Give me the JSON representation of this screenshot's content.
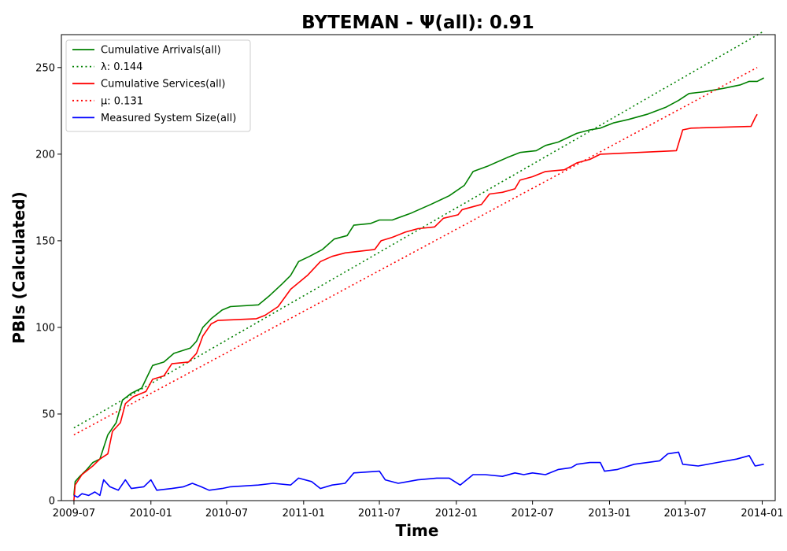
{
  "chart_data": {
    "type": "line",
    "title": "BYTEMAN -  Ψ(all): 0.91",
    "xlabel": "Time",
    "ylabel": "PBIs (Calculated)",
    "xlim": [
      "2009-06-01",
      "2014-02-01"
    ],
    "ylim": [
      0,
      269
    ],
    "x_ticks": [
      "2009-07",
      "2010-01",
      "2010-07",
      "2011-01",
      "2011-07",
      "2012-01",
      "2012-07",
      "2013-01",
      "2013-07",
      "2014-01"
    ],
    "y_ticks": [
      0,
      50,
      100,
      150,
      200,
      250
    ],
    "grid": false,
    "legend_position": "top-left",
    "series": [
      {
        "name": "Cumulative Arrivals(all)",
        "color": "#008000",
        "style": "solid",
        "points": [
          [
            "2009-07-01",
            3
          ],
          [
            "2009-07-04",
            11
          ],
          [
            "2009-07-15",
            14
          ],
          [
            "2009-08-01",
            18
          ],
          [
            "2009-08-15",
            22
          ],
          [
            "2009-09-01",
            24
          ],
          [
            "2009-09-20",
            38
          ],
          [
            "2009-10-10",
            45
          ],
          [
            "2009-10-25",
            58
          ],
          [
            "2009-11-15",
            62
          ],
          [
            "2009-12-10",
            65
          ],
          [
            "2009-12-20",
            70
          ],
          [
            "2010-01-05",
            78
          ],
          [
            "2010-02-01",
            80
          ],
          [
            "2010-02-25",
            85
          ],
          [
            "2010-04-05",
            88
          ],
          [
            "2010-04-20",
            92
          ],
          [
            "2010-05-05",
            100
          ],
          [
            "2010-05-25",
            105
          ],
          [
            "2010-06-20",
            110
          ],
          [
            "2010-07-10",
            112
          ],
          [
            "2010-09-15",
            113
          ],
          [
            "2010-10-10",
            118
          ],
          [
            "2010-11-10",
            125
          ],
          [
            "2010-12-01",
            130
          ],
          [
            "2010-12-20",
            138
          ],
          [
            "2011-01-15",
            141
          ],
          [
            "2011-02-15",
            145
          ],
          [
            "2011-03-15",
            151
          ],
          [
            "2011-04-15",
            153
          ],
          [
            "2011-05-01",
            159
          ],
          [
            "2011-06-10",
            160
          ],
          [
            "2011-07-01",
            162
          ],
          [
            "2011-08-01",
            162
          ],
          [
            "2011-09-15",
            166
          ],
          [
            "2011-11-01",
            171
          ],
          [
            "2011-12-15",
            176
          ],
          [
            "2012-01-20",
            182
          ],
          [
            "2012-02-10",
            190
          ],
          [
            "2012-03-15",
            193
          ],
          [
            "2012-05-01",
            198
          ],
          [
            "2012-06-01",
            201
          ],
          [
            "2012-07-10",
            202
          ],
          [
            "2012-08-01",
            205
          ],
          [
            "2012-09-01",
            207
          ],
          [
            "2012-10-15",
            212
          ],
          [
            "2012-11-15",
            214
          ],
          [
            "2012-12-10",
            215
          ],
          [
            "2013-01-10",
            218
          ],
          [
            "2013-02-15",
            220
          ],
          [
            "2013-04-01",
            223
          ],
          [
            "2013-05-15",
            227
          ],
          [
            "2013-06-15",
            231
          ],
          [
            "2013-07-10",
            235
          ],
          [
            "2013-08-15",
            236
          ],
          [
            "2013-10-01",
            238
          ],
          [
            "2013-11-10",
            240
          ],
          [
            "2013-12-01",
            242
          ],
          [
            "2013-12-20",
            242
          ],
          [
            "2014-01-05",
            244
          ]
        ]
      },
      {
        "name": "λ: 0.144",
        "color": "#008000",
        "style": "dotted",
        "points": [
          [
            "2009-07-01",
            42
          ],
          [
            "2014-01-05",
            271
          ]
        ]
      },
      {
        "name": "Cumulative Services(all)",
        "color": "#ff0000",
        "style": "solid",
        "points": [
          [
            "2009-07-01",
            0
          ],
          [
            "2009-07-04",
            9
          ],
          [
            "2009-07-20",
            15
          ],
          [
            "2009-08-15",
            20
          ],
          [
            "2009-09-01",
            24
          ],
          [
            "2009-09-20",
            27
          ],
          [
            "2009-10-01",
            40
          ],
          [
            "2009-10-20",
            45
          ],
          [
            "2009-11-01",
            56
          ],
          [
            "2009-11-20",
            60
          ],
          [
            "2009-12-20",
            63
          ],
          [
            "2010-01-05",
            70
          ],
          [
            "2010-02-01",
            72
          ],
          [
            "2010-02-20",
            79
          ],
          [
            "2010-04-01",
            80
          ],
          [
            "2010-04-20",
            85
          ],
          [
            "2010-05-05",
            95
          ],
          [
            "2010-05-25",
            102
          ],
          [
            "2010-06-10",
            104
          ],
          [
            "2010-09-10",
            105
          ],
          [
            "2010-10-01",
            107
          ],
          [
            "2010-11-01",
            112
          ],
          [
            "2010-12-01",
            122
          ],
          [
            "2011-01-10",
            130
          ],
          [
            "2011-02-10",
            138
          ],
          [
            "2011-03-10",
            141
          ],
          [
            "2011-04-10",
            143
          ],
          [
            "2011-06-20",
            145
          ],
          [
            "2011-07-05",
            150
          ],
          [
            "2011-08-01",
            152
          ],
          [
            "2011-09-01",
            155
          ],
          [
            "2011-10-01",
            157
          ],
          [
            "2011-11-10",
            158
          ],
          [
            "2011-12-01",
            163
          ],
          [
            "2012-01-05",
            165
          ],
          [
            "2012-01-15",
            168
          ],
          [
            "2012-03-01",
            171
          ],
          [
            "2012-03-20",
            177
          ],
          [
            "2012-04-20",
            178
          ],
          [
            "2012-05-20",
            180
          ],
          [
            "2012-06-01",
            185
          ],
          [
            "2012-07-01",
            187
          ],
          [
            "2012-08-01",
            190
          ],
          [
            "2012-09-15",
            191
          ],
          [
            "2012-10-15",
            195
          ],
          [
            "2012-11-15",
            197
          ],
          [
            "2012-12-10",
            200
          ],
          [
            "2013-06-10",
            202
          ],
          [
            "2013-06-25",
            214
          ],
          [
            "2013-07-15",
            215
          ],
          [
            "2013-12-05",
            216
          ],
          [
            "2013-12-15",
            221
          ],
          [
            "2013-12-20",
            223
          ]
        ]
      },
      {
        "name": "μ: 0.131",
        "color": "#ff0000",
        "style": "dotted",
        "points": [
          [
            "2009-07-01",
            38
          ],
          [
            "2013-12-20",
            250
          ]
        ]
      },
      {
        "name": "Measured System Size(all)",
        "color": "#0000ff",
        "style": "solid",
        "points": [
          [
            "2009-07-01",
            3
          ],
          [
            "2009-07-10",
            2
          ],
          [
            "2009-07-20",
            4
          ],
          [
            "2009-08-05",
            3
          ],
          [
            "2009-08-20",
            5
          ],
          [
            "2009-09-01",
            3
          ],
          [
            "2009-09-10",
            12
          ],
          [
            "2009-09-25",
            8
          ],
          [
            "2009-10-15",
            6
          ],
          [
            "2009-11-01",
            12
          ],
          [
            "2009-11-15",
            7
          ],
          [
            "2009-12-15",
            8
          ],
          [
            "2010-01-01",
            12
          ],
          [
            "2010-01-15",
            6
          ],
          [
            "2010-02-20",
            7
          ],
          [
            "2010-03-20",
            8
          ],
          [
            "2010-04-10",
            10
          ],
          [
            "2010-05-01",
            8
          ],
          [
            "2010-05-20",
            6
          ],
          [
            "2010-06-20",
            7
          ],
          [
            "2010-07-10",
            8
          ],
          [
            "2010-09-15",
            9
          ],
          [
            "2010-10-20",
            10
          ],
          [
            "2010-12-01",
            9
          ],
          [
            "2010-12-20",
            13
          ],
          [
            "2011-01-20",
            11
          ],
          [
            "2011-02-10",
            7
          ],
          [
            "2011-03-10",
            9
          ],
          [
            "2011-04-10",
            10
          ],
          [
            "2011-05-01",
            16
          ],
          [
            "2011-07-01",
            17
          ],
          [
            "2011-07-15",
            12
          ],
          [
            "2011-08-15",
            10
          ],
          [
            "2011-10-01",
            12
          ],
          [
            "2011-11-15",
            13
          ],
          [
            "2011-12-15",
            13
          ],
          [
            "2012-01-10",
            9
          ],
          [
            "2012-02-10",
            15
          ],
          [
            "2012-03-10",
            15
          ],
          [
            "2012-04-20",
            14
          ],
          [
            "2012-05-20",
            16
          ],
          [
            "2012-06-10",
            15
          ],
          [
            "2012-07-01",
            16
          ],
          [
            "2012-08-01",
            15
          ],
          [
            "2012-09-01",
            18
          ],
          [
            "2012-10-01",
            19
          ],
          [
            "2012-10-15",
            21
          ],
          [
            "2012-11-15",
            22
          ],
          [
            "2012-12-10",
            22
          ],
          [
            "2012-12-20",
            17
          ],
          [
            "2013-01-20",
            18
          ],
          [
            "2013-03-01",
            21
          ],
          [
            "2013-05-01",
            23
          ],
          [
            "2013-05-20",
            27
          ],
          [
            "2013-06-15",
            28
          ],
          [
            "2013-06-25",
            21
          ],
          [
            "2013-08-01",
            20
          ],
          [
            "2013-09-15",
            22
          ],
          [
            "2013-11-01",
            24
          ],
          [
            "2013-12-01",
            26
          ],
          [
            "2013-12-15",
            20
          ],
          [
            "2014-01-05",
            21
          ]
        ]
      }
    ]
  }
}
